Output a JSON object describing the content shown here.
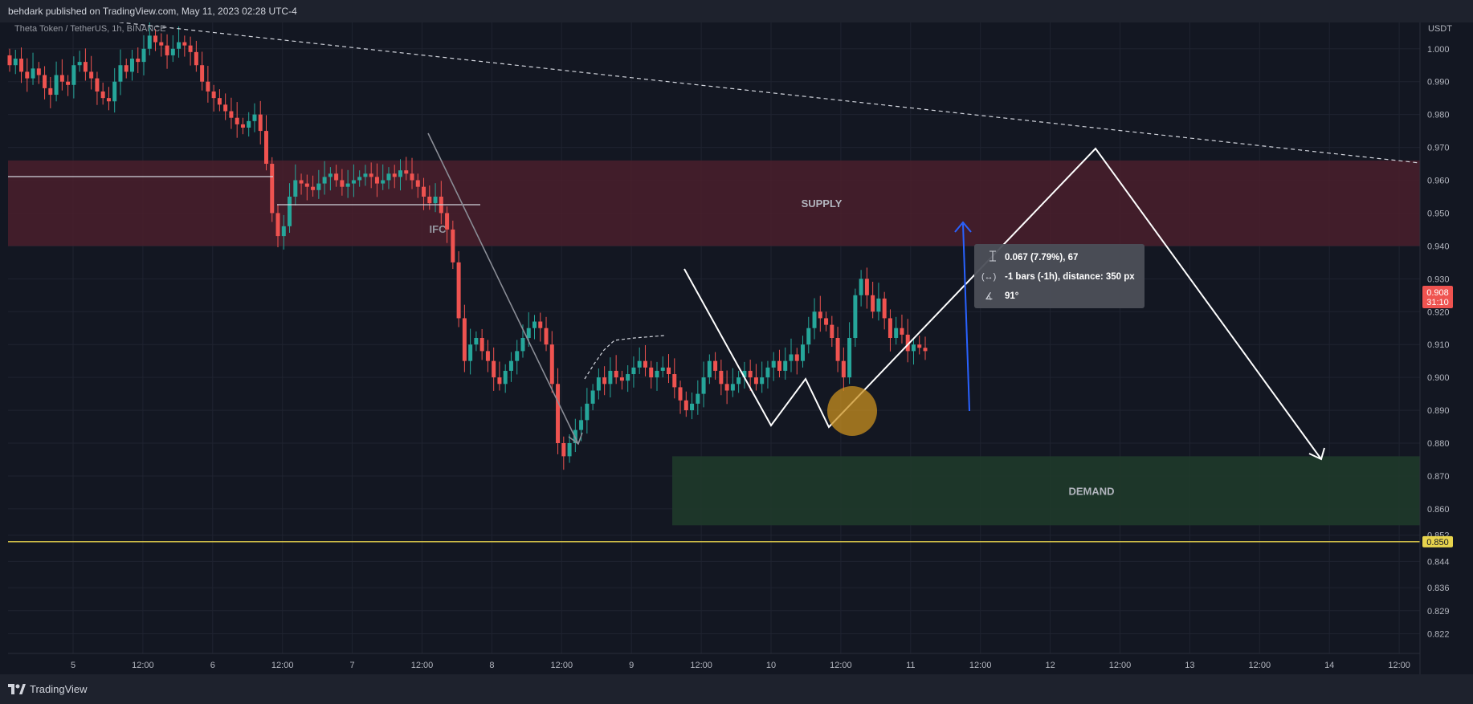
{
  "header": {
    "publish_line": "behdark published on TradingView.com, May 11, 2023 02:28 UTC-4"
  },
  "symbol": {
    "title": "Theta Token / TetherUS, 1h, BINANCE"
  },
  "price_axis": {
    "currency": "USDT",
    "ticks": [
      "1.000",
      "0.990",
      "0.980",
      "0.970",
      "0.960",
      "0.950",
      "0.940",
      "0.930",
      "0.920",
      "0.910",
      "0.900",
      "0.890",
      "0.880",
      "0.870",
      "0.860",
      "0.852",
      "0.844",
      "0.836",
      "0.829",
      "0.822"
    ],
    "last_price": "0.908",
    "countdown": "31:10",
    "target_label": "0.850"
  },
  "time_axis": {
    "ticks": [
      "5",
      "12:00",
      "6",
      "12:00",
      "7",
      "12:00",
      "8",
      "12:00",
      "9",
      "12:00",
      "10",
      "12:00",
      "11",
      "12:00",
      "12",
      "12:00",
      "13",
      "12:00",
      "14",
      "12:00"
    ]
  },
  "zones": {
    "supply": "SUPPLY",
    "demand": "DEMAND",
    "ifc": "IFC"
  },
  "measure": {
    "line1": "0.067 (7.79%), 67",
    "line2": "-1 bars (-1h), distance: 350 px",
    "line3": "91°"
  },
  "colors": {
    "background": "#131722",
    "up": "#26a69a",
    "down": "#ef5350",
    "supply_zone": "#4a1f2b",
    "demand_zone": "#1f3a2a",
    "target_line": "#e8d44d",
    "measure_arrow": "#2962ff",
    "highlight": "#c9901f"
  },
  "chart_data": {
    "type": "candlestick",
    "y_range": [
      0.816,
      1.008
    ],
    "supply_zone": [
      0.94,
      0.966
    ],
    "demand_zone": [
      0.855,
      0.876
    ],
    "target": 0.85,
    "closes": [
      0.995,
      0.997,
      0.993,
      0.991,
      0.994,
      0.992,
      0.988,
      0.986,
      0.992,
      0.99,
      0.989,
      0.995,
      0.996,
      0.993,
      0.991,
      0.987,
      0.985,
      0.984,
      0.99,
      0.995,
      0.993,
      0.997,
      0.996,
      1.0,
      1.004,
      1.002,
      1.001,
      0.998,
      1.0,
      1.002,
      1.001,
      0.999,
      0.995,
      0.99,
      0.987,
      0.985,
      0.983,
      0.981,
      0.979,
      0.977,
      0.976,
      0.978,
      0.98,
      0.975,
      0.965,
      0.95,
      0.943,
      0.946,
      0.955,
      0.96,
      0.959,
      0.958,
      0.957,
      0.959,
      0.961,
      0.962,
      0.96,
      0.958,
      0.959,
      0.96,
      0.961,
      0.962,
      0.961,
      0.959,
      0.96,
      0.962,
      0.961,
      0.963,
      0.962,
      0.96,
      0.958,
      0.955,
      0.953,
      0.955,
      0.95,
      0.945,
      0.935,
      0.918,
      0.905,
      0.91,
      0.912,
      0.908,
      0.905,
      0.9,
      0.898,
      0.902,
      0.905,
      0.908,
      0.912,
      0.915,
      0.917,
      0.915,
      0.91,
      0.898,
      0.88,
      0.876,
      0.88,
      0.884,
      0.887,
      0.892,
      0.896,
      0.9,
      0.898,
      0.902,
      0.9,
      0.899,
      0.901,
      0.903,
      0.905,
      0.903,
      0.9,
      0.902,
      0.903,
      0.901,
      0.897,
      0.893,
      0.89,
      0.892,
      0.895,
      0.9,
      0.905,
      0.902,
      0.898,
      0.896,
      0.898,
      0.9,
      0.902,
      0.9,
      0.898,
      0.9,
      0.903,
      0.905,
      0.902,
      0.905,
      0.907,
      0.905,
      0.91,
      0.915,
      0.92,
      0.918,
      0.916,
      0.912,
      0.905,
      0.9,
      0.912,
      0.925,
      0.93,
      0.925,
      0.92,
      0.924,
      0.918,
      0.912,
      0.915,
      0.913,
      0.908,
      0.91,
      0.909,
      0.908
    ]
  }
}
